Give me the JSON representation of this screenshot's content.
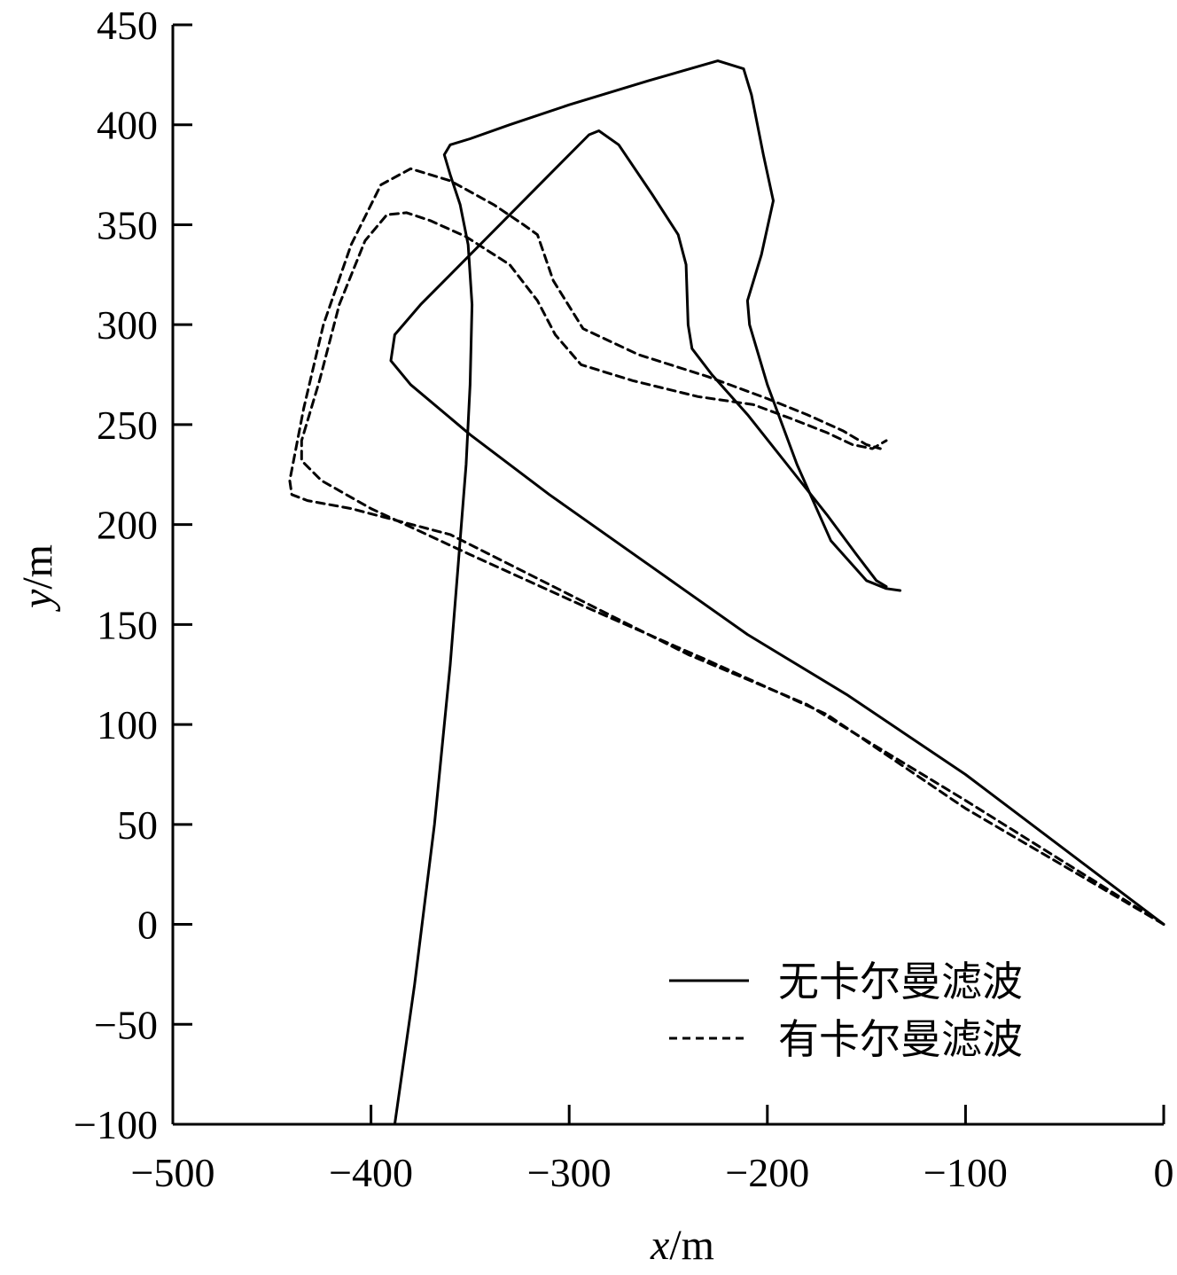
{
  "chart_data": {
    "type": "line",
    "title": "",
    "xlabel": "x/m",
    "ylabel": "y/m",
    "xlabel_var": "x",
    "ylabel_var": "y",
    "unit_sep": "/m",
    "xlim": [
      -500,
      0
    ],
    "ylim": [
      -100,
      450
    ],
    "xticks": [
      -500,
      -400,
      -300,
      -200,
      -100,
      0
    ],
    "yticks": [
      -100,
      -50,
      0,
      50,
      100,
      150,
      200,
      250,
      300,
      350,
      400,
      450
    ],
    "xtick_labels": [
      "−500",
      "−400",
      "−300",
      "−200",
      "−100",
      "0"
    ],
    "ytick_labels": [
      "−100",
      "−50",
      "0",
      "50",
      "100",
      "150",
      "200",
      "250",
      "300",
      "350",
      "400",
      "450"
    ],
    "grid": false,
    "legend_position": "bottom-right",
    "colors": {
      "line": "#000000",
      "axis": "#000000",
      "background": "#ffffff"
    },
    "series": [
      {
        "name": "无卡尔曼滤波",
        "style": "solid",
        "x": [
          -388,
          -378,
          -368,
          -360,
          -356,
          -352,
          -350,
          -349,
          -351,
          -355,
          -360,
          -363,
          -360,
          -350,
          -330,
          -300,
          -260,
          -225,
          -212,
          -208,
          -202,
          -197,
          -203,
          -210,
          -209,
          -200,
          -185,
          -168,
          -150,
          -140,
          -133
        ],
        "y": [
          -100,
          -30,
          50,
          130,
          180,
          230,
          270,
          310,
          340,
          360,
          375,
          385,
          390,
          393,
          400,
          410,
          422,
          432,
          428,
          415,
          385,
          362,
          335,
          312,
          300,
          270,
          230,
          192,
          172,
          168,
          167
        ]
      },
      {
        "name": "无卡尔曼滤波",
        "style": "solid",
        "x": [
          0,
          -100,
          -160,
          -210,
          -260,
          -310,
          -350,
          -380,
          -390,
          -388,
          -375,
          -340,
          -310,
          -290,
          -285,
          -275,
          -258,
          -245,
          -241,
          -240,
          -238,
          -228,
          -210,
          -190,
          -170,
          -155,
          -145,
          -140
        ],
        "y": [
          0,
          75,
          115,
          145,
          180,
          215,
          245,
          270,
          282,
          295,
          310,
          345,
          375,
          395,
          397,
          390,
          365,
          345,
          330,
          300,
          288,
          275,
          255,
          230,
          205,
          185,
          172,
          169
        ]
      },
      {
        "name": "有卡尔曼滤波",
        "style": "dashed",
        "x": [
          0,
          -100,
          -170,
          -230,
          -290,
          -350,
          -400,
          -425,
          -435,
          -435,
          -426,
          -416,
          -403,
          -392,
          -382,
          -370,
          -352,
          -330,
          -316,
          -307,
          -294,
          -268,
          -235,
          -207,
          -188,
          -170,
          -157,
          -147,
          -140
        ],
        "y": [
          0,
          58,
          105,
          132,
          158,
          185,
          208,
          222,
          232,
          242,
          272,
          310,
          342,
          355,
          356,
          352,
          344,
          330,
          312,
          295,
          280,
          272,
          264,
          260,
          253,
          246,
          240,
          238,
          242
        ]
      },
      {
        "name": "有卡尔曼滤波",
        "style": "dashed",
        "x": [
          0,
          -100,
          -180,
          -240,
          -300,
          -360,
          -410,
          -432,
          -440,
          -441,
          -434,
          -424,
          -410,
          -395,
          -380,
          -360,
          -338,
          -323,
          -316,
          -308,
          -293,
          -265,
          -230,
          -200,
          -180,
          -162,
          -150,
          -143
        ],
        "y": [
          0,
          62,
          110,
          135,
          165,
          195,
          208,
          212,
          215,
          222,
          258,
          300,
          340,
          370,
          378,
          372,
          360,
          350,
          345,
          322,
          298,
          285,
          274,
          263,
          255,
          247,
          240,
          238
        ]
      }
    ],
    "legend": [
      {
        "label": "无卡尔曼滤波",
        "style": "solid"
      },
      {
        "label": "有卡尔曼滤波",
        "style": "dashed"
      }
    ]
  }
}
